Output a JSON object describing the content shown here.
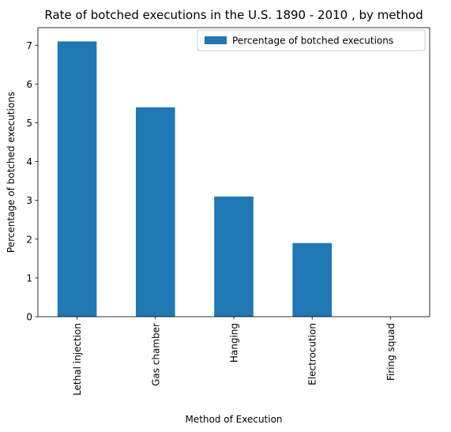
{
  "chart_data": {
    "type": "bar",
    "title": "Rate of botched executions in the U.S. 1890 - 2010 , by method",
    "xlabel": "Method of Execution",
    "ylabel": "Percentage of botched executions",
    "categories": [
      "Lethal injection",
      "Gas chamber",
      "Hanging",
      "Electrocution",
      "Firing squad"
    ],
    "series": [
      {
        "name": "Percentage of botched executions",
        "values": [
          7.1,
          5.4,
          3.1,
          1.9,
          0
        ],
        "color": "#1f77b4"
      }
    ],
    "ylim": [
      0,
      7.455
    ],
    "yticks": [
      0,
      1,
      2,
      3,
      4,
      5,
      6,
      7
    ],
    "grid": false,
    "legend_position": "top-right"
  }
}
